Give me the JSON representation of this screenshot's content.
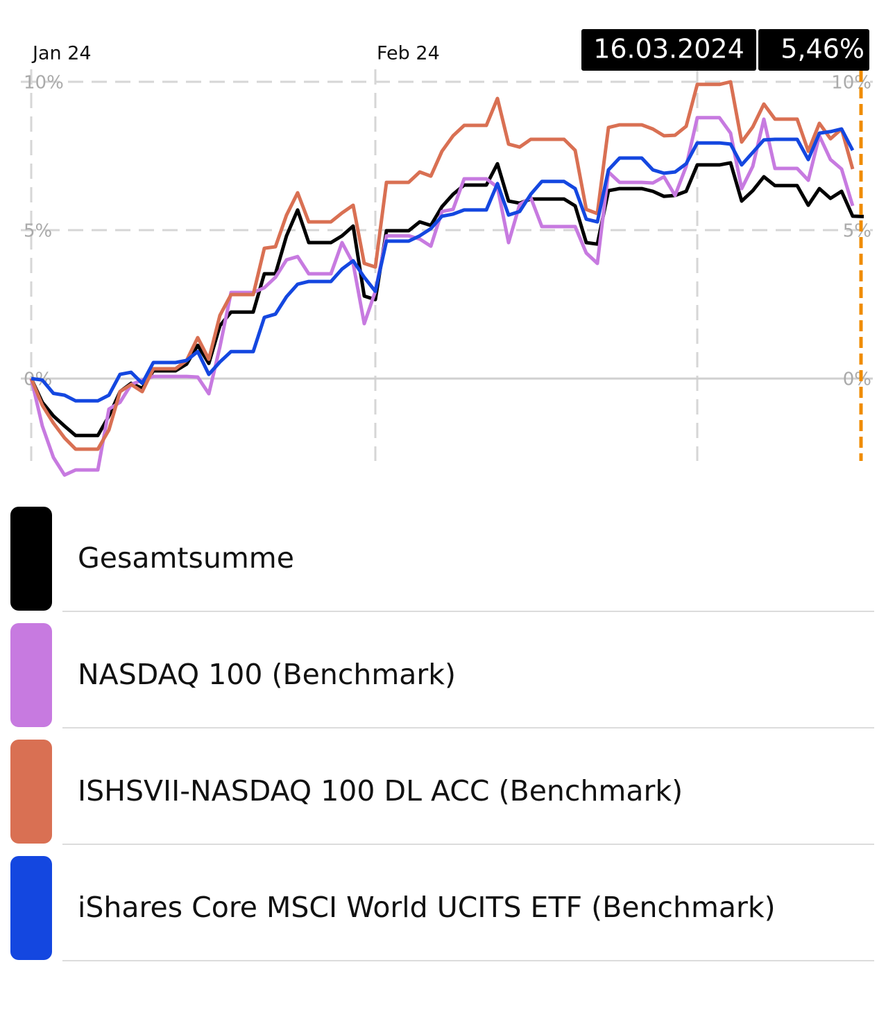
{
  "chart_data": {
    "type": "line",
    "x": [
      "01.01.2024",
      "02.01.2024",
      "03.01.2024",
      "04.01.2024",
      "05.01.2024",
      "06.01.2024",
      "07.01.2024",
      "08.01.2024",
      "09.01.2024",
      "10.01.2024",
      "11.01.2024",
      "12.01.2024",
      "13.01.2024",
      "14.01.2024",
      "15.01.2024",
      "16.01.2024",
      "17.01.2024",
      "18.01.2024",
      "19.01.2024",
      "20.01.2024",
      "21.01.2024",
      "22.01.2024",
      "23.01.2024",
      "24.01.2024",
      "25.01.2024",
      "26.01.2024",
      "27.01.2024",
      "28.01.2024",
      "29.01.2024",
      "30.01.2024",
      "31.01.2024",
      "01.02.2024",
      "02.02.2024",
      "03.02.2024",
      "04.02.2024",
      "05.02.2024",
      "06.02.2024",
      "07.02.2024",
      "08.02.2024",
      "09.02.2024",
      "10.02.2024",
      "11.02.2024",
      "12.02.2024",
      "13.02.2024",
      "14.02.2024",
      "15.02.2024",
      "16.02.2024",
      "17.02.2024",
      "18.02.2024",
      "19.02.2024",
      "20.02.2024",
      "21.02.2024",
      "22.02.2024",
      "23.02.2024",
      "24.02.2024",
      "25.02.2024",
      "26.02.2024",
      "27.02.2024",
      "28.02.2024",
      "29.02.2024",
      "01.03.2024",
      "02.03.2024",
      "03.03.2024",
      "04.03.2024",
      "05.03.2024",
      "06.03.2024",
      "07.03.2024",
      "08.03.2024",
      "09.03.2024",
      "10.03.2024",
      "11.03.2024",
      "12.03.2024",
      "13.03.2024",
      "14.03.2024",
      "15.03.2024",
      "16.03.2024"
    ],
    "series": [
      {
        "name": "Gesamtsumme",
        "color": "#000000",
        "values": [
          0,
          -0.8,
          -1.26,
          -1.6,
          -1.92,
          -1.92,
          -1.92,
          -1.26,
          -0.44,
          -0.16,
          -0.33,
          0.26,
          0.26,
          0.26,
          0.49,
          1.12,
          0.51,
          1.78,
          2.24,
          2.24,
          2.24,
          3.53,
          3.53,
          4.81,
          5.68,
          4.58,
          4.58,
          4.58,
          4.81,
          5.14,
          2.78,
          2.66,
          4.98,
          4.98,
          4.98,
          5.28,
          5.16,
          5.79,
          6.21,
          6.52,
          6.52,
          6.52,
          7.24,
          5.98,
          5.91,
          6.05,
          6.05,
          6.05,
          6.05,
          5.82,
          4.58,
          4.53,
          6.33,
          6.4,
          6.4,
          6.4,
          6.31,
          6.14,
          6.17,
          6.31,
          7.2,
          7.2,
          7.2,
          7.27,
          5.98,
          6.33,
          6.8,
          6.5,
          6.5,
          6.5,
          5.84,
          6.4,
          6.07,
          6.31,
          5.47,
          5.46
        ]
      },
      {
        "name": "NASDAQ 100 (Benchmark)",
        "color": "#c77ae0",
        "values": [
          0,
          -1.6,
          -2.66,
          -3.25,
          -3.08,
          -3.08,
          -3.08,
          -1.03,
          -0.8,
          -0.2,
          -0.05,
          0.07,
          0.07,
          0.07,
          0.07,
          0.05,
          -0.51,
          1.07,
          2.9,
          2.9,
          2.9,
          3.06,
          3.41,
          4.0,
          4.11,
          3.53,
          3.53,
          3.53,
          4.58,
          3.88,
          1.85,
          2.94,
          4.81,
          4.81,
          4.81,
          4.7,
          4.46,
          5.63,
          5.7,
          6.73,
          6.73,
          6.73,
          6.45,
          4.58,
          5.86,
          6.1,
          5.12,
          5.12,
          5.12,
          5.12,
          4.23,
          3.88,
          6.96,
          6.61,
          6.61,
          6.61,
          6.59,
          6.8,
          6.17,
          7.15,
          8.79,
          8.79,
          8.79,
          8.27,
          6.4,
          7.15,
          8.74,
          7.08,
          7.08,
          7.08,
          6.68,
          8.18,
          7.38,
          7.06,
          5.82,
          null
        ]
      },
      {
        "name": "ISHSVII-NASDAQ 100 DL ACC (Benchmark)",
        "color": "#d97053",
        "values": [
          0,
          -0.9,
          -1.5,
          -2.0,
          -2.38,
          -2.38,
          -2.38,
          -1.73,
          -0.44,
          -0.2,
          -0.44,
          0.33,
          0.33,
          0.33,
          0.61,
          1.38,
          0.65,
          2.13,
          2.83,
          2.83,
          2.83,
          4.39,
          4.44,
          5.51,
          6.26,
          5.28,
          5.28,
          5.28,
          5.58,
          5.84,
          3.88,
          3.76,
          6.61,
          6.61,
          6.61,
          6.96,
          6.82,
          7.66,
          8.18,
          8.53,
          8.53,
          8.53,
          9.44,
          7.9,
          7.8,
          8.06,
          8.06,
          8.06,
          8.06,
          7.69,
          5.7,
          5.56,
          8.46,
          8.55,
          8.55,
          8.55,
          8.41,
          8.18,
          8.2,
          8.5,
          9.91,
          9.91,
          9.91,
          10.0,
          7.97,
          8.48,
          9.25,
          8.74,
          8.74,
          8.74,
          7.66,
          8.6,
          8.08,
          8.41,
          7.06,
          null
        ]
      },
      {
        "name": "iShares Core MSCI World UCITS ETF (Benchmark)",
        "color": "#1447e0",
        "values": [
          0,
          -0.05,
          -0.5,
          -0.56,
          -0.75,
          -0.75,
          -0.75,
          -0.56,
          0.14,
          0.21,
          -0.16,
          0.54,
          0.54,
          0.54,
          0.61,
          0.91,
          0.14,
          0.56,
          0.91,
          0.91,
          0.91,
          2.06,
          2.17,
          2.76,
          3.18,
          3.27,
          3.27,
          3.27,
          3.69,
          3.97,
          3.41,
          2.94,
          4.63,
          4.63,
          4.63,
          4.81,
          5.05,
          5.47,
          5.54,
          5.68,
          5.68,
          5.68,
          6.57,
          5.51,
          5.63,
          6.21,
          6.64,
          6.64,
          6.64,
          6.4,
          5.37,
          5.28,
          7.03,
          7.43,
          7.43,
          7.43,
          7.03,
          6.92,
          6.96,
          7.24,
          7.94,
          7.94,
          7.94,
          7.9,
          7.2,
          7.62,
          8.04,
          8.06,
          8.06,
          8.06,
          7.38,
          8.27,
          8.32,
          8.41,
          7.69,
          null
        ]
      }
    ],
    "ylim": [
      -3.36,
      10.42
    ],
    "yticks": [
      {
        "value": 0,
        "label": "0%"
      },
      {
        "value": 5,
        "label": "5%"
      },
      {
        "value": 10,
        "label": "10%"
      }
    ],
    "xticks": [
      {
        "value": "01.01.2024",
        "label": "Jan 24"
      },
      {
        "value": "01.02.2024",
        "label": "Feb 24"
      },
      {
        "value": "01.03.2024"
      }
    ],
    "grid": true,
    "tooltip": {
      "date": "16.03.2024",
      "value": 5.46,
      "value_label": "5,46%",
      "color": "#f08c00"
    }
  }
}
